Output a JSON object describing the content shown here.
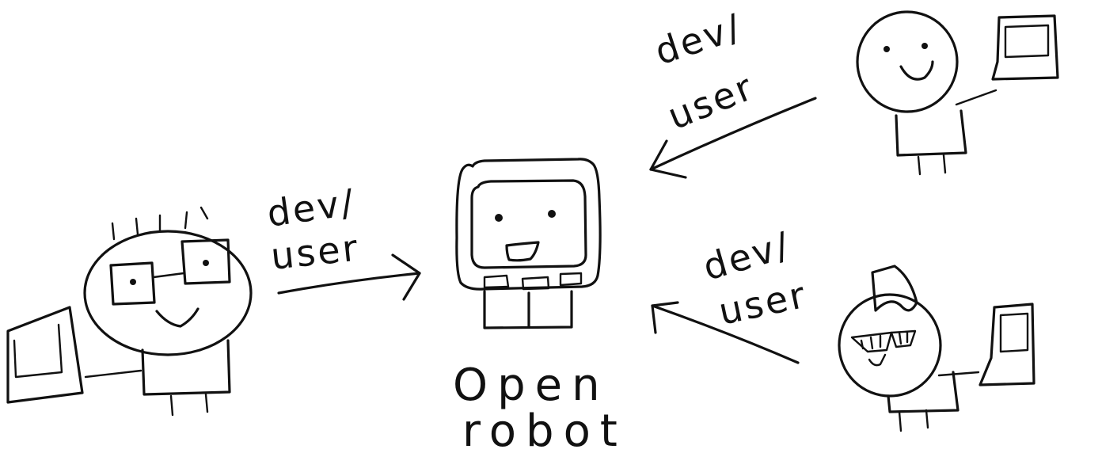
{
  "center": {
    "line1": "Open",
    "line2": "robot"
  },
  "connections": [
    {
      "line1": "dev/",
      "line2": "user"
    },
    {
      "line1": "dev/",
      "line2": "user"
    },
    {
      "line1": "dev/",
      "line2": "user"
    }
  ],
  "colors": {
    "ink": "#111111",
    "paper": "#ffffff"
  }
}
